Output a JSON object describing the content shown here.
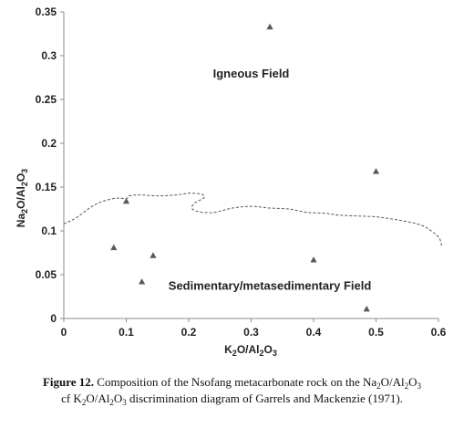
{
  "chart_data": {
    "type": "scatter",
    "title": "",
    "xlim": [
      0,
      0.6
    ],
    "ylim": [
      0,
      0.35
    ],
    "x_ticks": [
      "0",
      "0.1",
      "0.2",
      "0.3",
      "0.4",
      "0.5",
      "0.6"
    ],
    "y_ticks": [
      "0",
      "0.05",
      "0.1",
      "0.15",
      "0.2",
      "0.25",
      "0.3",
      "0.35"
    ],
    "xlabel": {
      "base1": "K",
      "sub1": "2",
      "mid": "O/Al",
      "sub2": "2",
      "base2": "O",
      "sub3": "3"
    },
    "ylabel": {
      "base1": "Na",
      "sub1": "2",
      "mid": "O/Al",
      "sub2": "2",
      "base2": "O",
      "sub3": "3"
    },
    "grid": false,
    "marker": "triangle",
    "marker_color": "#595959",
    "points": [
      {
        "x": 0.33,
        "y": 0.333
      },
      {
        "x": 0.5,
        "y": 0.168
      },
      {
        "x": 0.1,
        "y": 0.134
      },
      {
        "x": 0.08,
        "y": 0.081
      },
      {
        "x": 0.143,
        "y": 0.072
      },
      {
        "x": 0.4,
        "y": 0.067
      },
      {
        "x": 0.125,
        "y": 0.042
      },
      {
        "x": 0.485,
        "y": 0.011
      }
    ],
    "boundary_line": {
      "style": "dashed",
      "color": "#555555",
      "points": [
        [
          0.0,
          0.108
        ],
        [
          0.02,
          0.115
        ],
        [
          0.05,
          0.13
        ],
        [
          0.08,
          0.137
        ],
        [
          0.1,
          0.137
        ],
        [
          0.105,
          0.14
        ],
        [
          0.12,
          0.141
        ],
        [
          0.15,
          0.14
        ],
        [
          0.18,
          0.141
        ],
        [
          0.2,
          0.143
        ],
        [
          0.22,
          0.142
        ],
        [
          0.225,
          0.138
        ],
        [
          0.21,
          0.132
        ],
        [
          0.205,
          0.126
        ],
        [
          0.215,
          0.122
        ],
        [
          0.24,
          0.121
        ],
        [
          0.27,
          0.126
        ],
        [
          0.3,
          0.128
        ],
        [
          0.33,
          0.126
        ],
        [
          0.36,
          0.125
        ],
        [
          0.39,
          0.121
        ],
        [
          0.42,
          0.12
        ],
        [
          0.44,
          0.118
        ],
        [
          0.47,
          0.117
        ],
        [
          0.5,
          0.116
        ],
        [
          0.53,
          0.113
        ],
        [
          0.56,
          0.109
        ],
        [
          0.58,
          0.104
        ],
        [
          0.6,
          0.093
        ],
        [
          0.605,
          0.083
        ]
      ]
    },
    "annotations": [
      {
        "text": "Igneous Field",
        "x": 0.3,
        "y": 0.275
      },
      {
        "text": "Sedimentary/metasedimentary  Field",
        "x": 0.33,
        "y": 0.033
      }
    ]
  },
  "caption": {
    "label": "Figure 12.",
    "text1": " Composition of the Nsofang metacarbonate rock on the Na",
    "s1": "2",
    "t2": "O/Al",
    "s2": "2",
    "t3": "O",
    "s3": "3",
    "line2a": "cf K",
    "s4": "2",
    "t5": "O/Al",
    "s5": "2",
    "t6": "O",
    "s6": "3",
    "line2b": " discrimination diagram of Garrels and Mackenzie (1971)."
  }
}
